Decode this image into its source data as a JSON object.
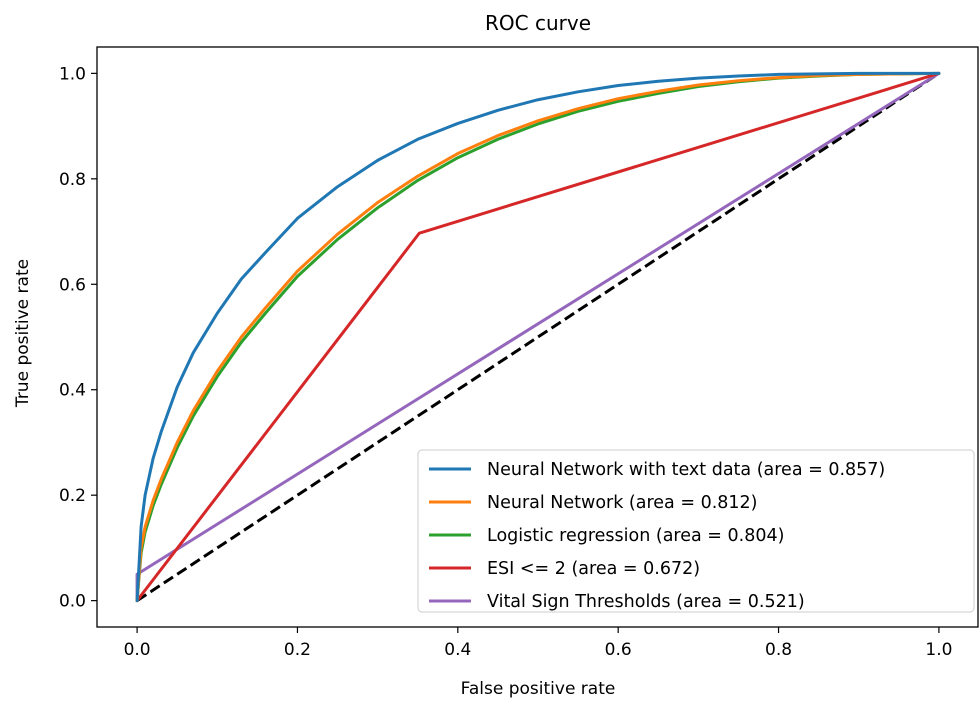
{
  "chart_data": {
    "type": "line",
    "title": "ROC curve",
    "xlabel": "False positive rate",
    "ylabel": "True positive rate",
    "xlim": [
      -0.05,
      1.05
    ],
    "ylim": [
      -0.05,
      1.05
    ],
    "xticks": [
      0.0,
      0.2,
      0.4,
      0.6,
      0.8,
      1.0
    ],
    "yticks": [
      0.0,
      0.2,
      0.4,
      0.6,
      0.8,
      1.0
    ],
    "xtick_labels": [
      "0.0",
      "0.2",
      "0.4",
      "0.6",
      "0.8",
      "1.0"
    ],
    "ytick_labels": [
      "0.0",
      "0.2",
      "0.4",
      "0.6",
      "0.8",
      "1.0"
    ],
    "grid": false,
    "legend_position": "lower-right",
    "series": [
      {
        "name": "Neural Network with text data (area = 0.857)",
        "color": "#1f77b4",
        "x": [
          0,
          0.005,
          0.01,
          0.02,
          0.03,
          0.05,
          0.07,
          0.1,
          0.13,
          0.16,
          0.2,
          0.25,
          0.3,
          0.35,
          0.4,
          0.45,
          0.5,
          0.55,
          0.6,
          0.65,
          0.7,
          0.75,
          0.8,
          0.85,
          0.9,
          0.95,
          1.0
        ],
        "y": [
          0,
          0.14,
          0.2,
          0.27,
          0.32,
          0.405,
          0.47,
          0.545,
          0.61,
          0.66,
          0.725,
          0.785,
          0.835,
          0.875,
          0.905,
          0.93,
          0.95,
          0.965,
          0.977,
          0.985,
          0.991,
          0.995,
          0.998,
          0.999,
          1.0,
          1.0,
          1.0
        ]
      },
      {
        "name": "Neural Network (area = 0.812)",
        "color": "#ff7f0e",
        "x": [
          0,
          0.005,
          0.01,
          0.02,
          0.03,
          0.05,
          0.07,
          0.1,
          0.13,
          0.16,
          0.2,
          0.25,
          0.3,
          0.35,
          0.4,
          0.45,
          0.5,
          0.55,
          0.6,
          0.65,
          0.7,
          0.75,
          0.8,
          0.85,
          0.9,
          0.95,
          1.0
        ],
        "y": [
          0,
          0.1,
          0.14,
          0.19,
          0.23,
          0.3,
          0.36,
          0.435,
          0.5,
          0.555,
          0.625,
          0.695,
          0.755,
          0.805,
          0.848,
          0.882,
          0.91,
          0.933,
          0.952,
          0.966,
          0.978,
          0.986,
          0.992,
          0.996,
          0.998,
          0.999,
          1.0
        ]
      },
      {
        "name": "Logistic regression (area = 0.804)",
        "color": "#2ca02c",
        "x": [
          0,
          0.005,
          0.01,
          0.02,
          0.03,
          0.05,
          0.07,
          0.1,
          0.13,
          0.16,
          0.2,
          0.25,
          0.3,
          0.35,
          0.4,
          0.45,
          0.5,
          0.55,
          0.6,
          0.65,
          0.7,
          0.75,
          0.8,
          0.85,
          0.9,
          0.95,
          1.0
        ],
        "y": [
          0,
          0.09,
          0.13,
          0.18,
          0.22,
          0.29,
          0.35,
          0.425,
          0.49,
          0.545,
          0.615,
          0.685,
          0.745,
          0.797,
          0.84,
          0.875,
          0.904,
          0.928,
          0.947,
          0.962,
          0.975,
          0.984,
          0.991,
          0.995,
          0.998,
          0.999,
          1.0
        ]
      },
      {
        "name": "ESI <= 2 (area = 0.672)",
        "color": "#d62728",
        "x": [
          0,
          0.352,
          1.0
        ],
        "y": [
          0,
          0.697,
          1.0
        ]
      },
      {
        "name": "Vital Sign Thresholds (area = 0.521)",
        "color": "#9467bd",
        "x": [
          0,
          0.0,
          1.0
        ],
        "y": [
          0,
          0.05,
          1.0
        ]
      }
    ],
    "reference_line": {
      "x": [
        0,
        1
      ],
      "y": [
        0,
        1
      ],
      "color": "#000000",
      "style": "dashed"
    }
  }
}
